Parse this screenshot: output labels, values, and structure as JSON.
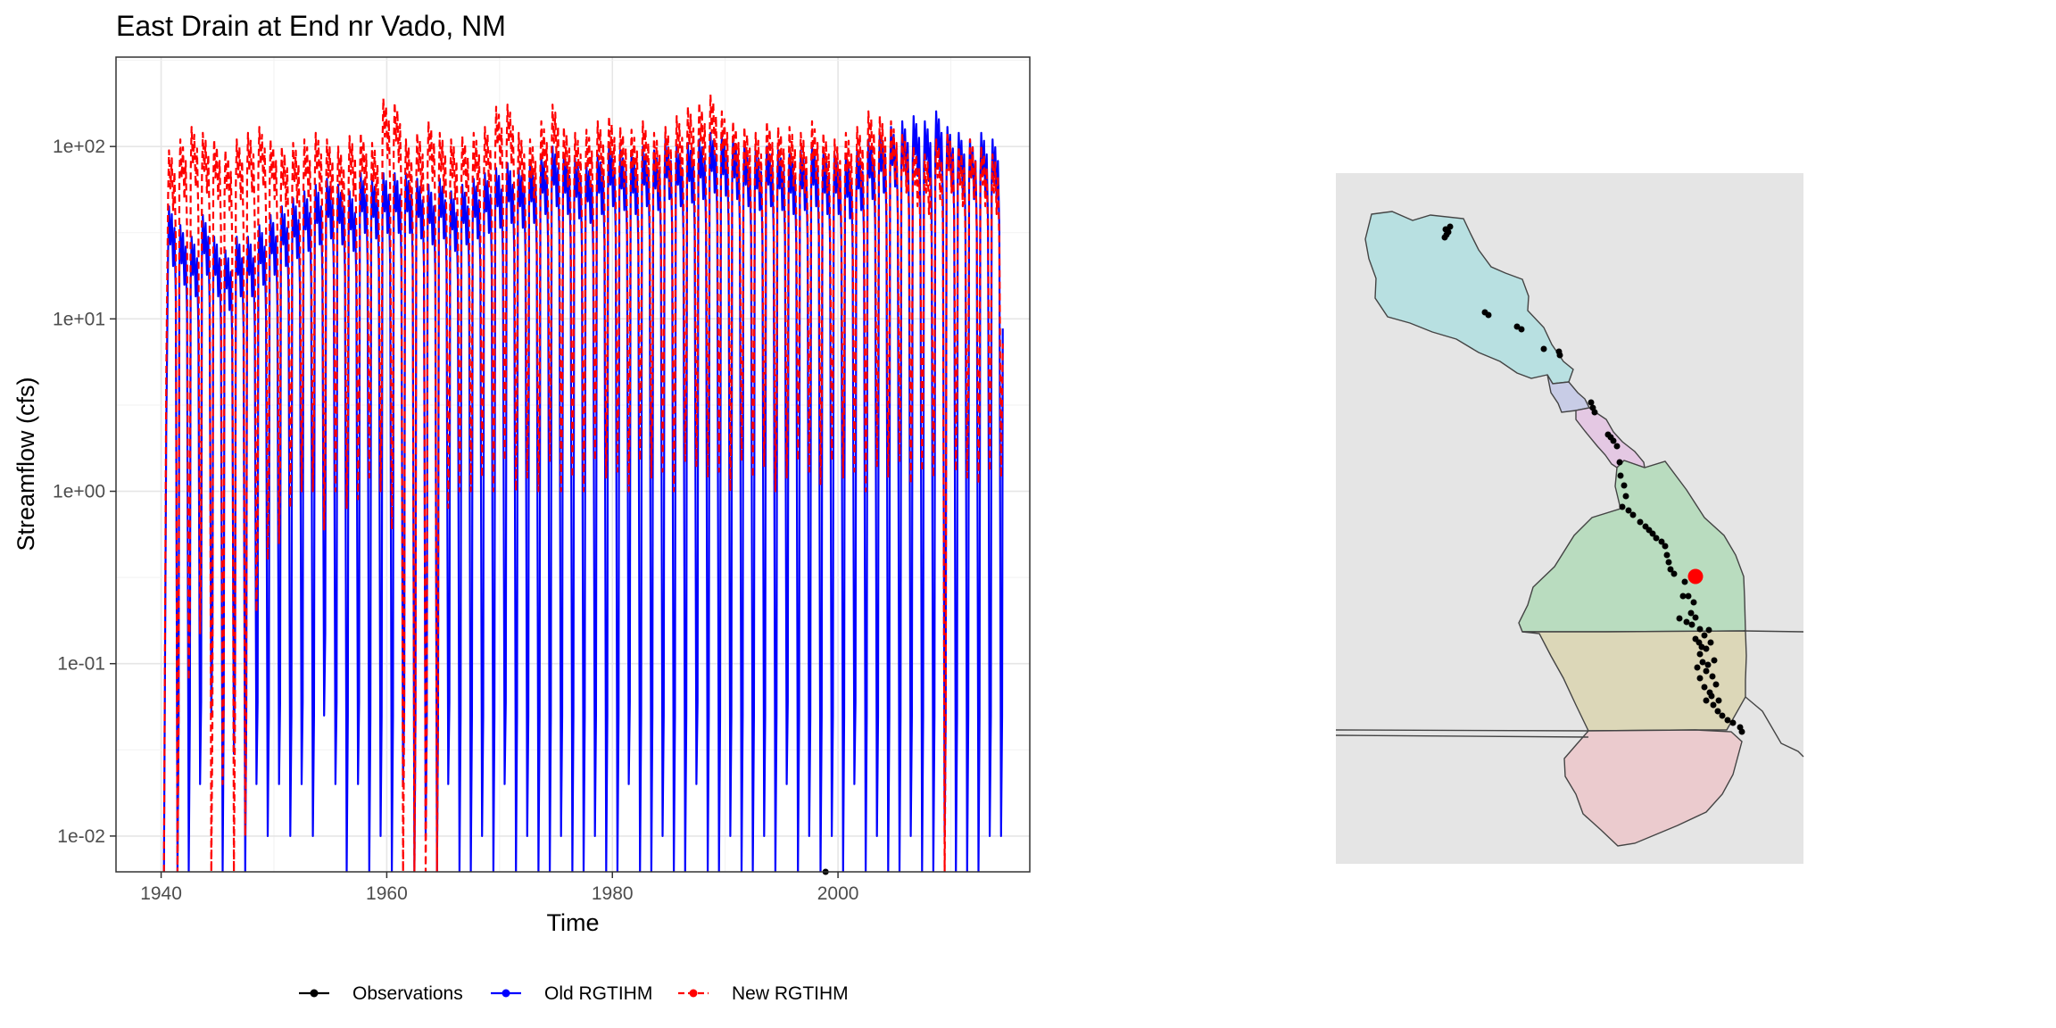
{
  "chart_data": [
    {
      "type": "line",
      "title": "East Drain at End nr Vado, NM",
      "xlabel": "Time",
      "ylabel": "Streamflow (cfs)",
      "xlim": [
        1936,
        2017
      ],
      "x_ticks": [
        1940,
        1960,
        1980,
        2000
      ],
      "y_scale": "log10",
      "ylim": [
        0.0062,
        330
      ],
      "y_ticks": [
        {
          "value": 0.01,
          "label": "1e-02"
        },
        {
          "value": 0.1,
          "label": "1e-01"
        },
        {
          "value": 1,
          "label": "1e+00"
        },
        {
          "value": 10,
          "label": "1e+01"
        },
        {
          "value": 100,
          "label": "1e+02"
        }
      ],
      "grid": true,
      "legend_position": "bottom",
      "series": [
        {
          "name": "Observations",
          "color": "#000000",
          "style": "solid",
          "x": [
            1998.9
          ],
          "y": [
            0.0062
          ]
        },
        {
          "name": "Old RGTIHM",
          "color": "#0000ff",
          "style": "solid",
          "peak_years": [
            1941,
            1942,
            1943,
            1944,
            1945,
            1946,
            1947,
            1948,
            1949,
            1950,
            1951,
            1952,
            1953,
            1954,
            1955,
            1956,
            1957,
            1958,
            1959,
            1960,
            1961,
            1962,
            1963,
            1964,
            1965,
            1966,
            1967,
            1968,
            1969,
            1970,
            1971,
            1972,
            1973,
            1974,
            1975,
            1976,
            1977,
            1978,
            1979,
            1980,
            1981,
            1982,
            1983,
            1984,
            1985,
            1986,
            1987,
            1988,
            1989,
            1990,
            1991,
            1992,
            1993,
            1994,
            1995,
            1996,
            1997,
            1998,
            1999,
            2000,
            2001,
            2002,
            2003,
            2004,
            2005,
            2006,
            2007,
            2008,
            2009,
            2010,
            2011,
            2012,
            2013,
            2014
          ],
          "annual_peak": [
            45,
            35,
            30,
            40,
            30,
            25,
            30,
            30,
            35,
            40,
            45,
            50,
            55,
            60,
            65,
            60,
            55,
            70,
            65,
            70,
            70,
            70,
            65,
            60,
            65,
            55,
            60,
            65,
            70,
            75,
            80,
            75,
            80,
            90,
            100,
            90,
            85,
            80,
            90,
            100,
            95,
            90,
            100,
            95,
            110,
            100,
            105,
            110,
            120,
            115,
            110,
            100,
            95,
            100,
            95,
            90,
            95,
            100,
            90,
            90,
            85,
            95,
            110,
            120,
            130,
            140,
            150,
            140,
            160,
            130,
            120,
            110,
            120,
            110
          ],
          "annual_min": [
            0.0062,
            0.0062,
            0.02,
            0.05,
            0.0062,
            0.03,
            0.0062,
            0.02,
            0.01,
            0.02,
            0.01,
            0.02,
            0.01,
            0.05,
            0.02,
            0.0062,
            0.02,
            0.0062,
            0.01,
            0.0062,
            0.02,
            0.0062,
            0.01,
            0.0062,
            0.02,
            0.0062,
            0.0062,
            0.01,
            0.0062,
            0.02,
            0.0062,
            0.01,
            0.0062,
            0.0062,
            0.01,
            0.0062,
            0.0062,
            0.01,
            0.0062,
            0.0062,
            0.02,
            0.0062,
            0.0062,
            0.01,
            0.0062,
            0.0062,
            0.02,
            0.0062,
            0.0062,
            0.01,
            0.0062,
            0.0062,
            0.01,
            0.0062,
            0.02,
            0.0062,
            0.01,
            0.0062,
            0.01,
            0.0062,
            0.02,
            0.0062,
            0.01,
            0.0062,
            0.0062,
            0.01,
            0.0062,
            0.0062,
            0.01,
            0.0062,
            0.0062,
            0.0062,
            0.01,
            0.01
          ]
        },
        {
          "name": "New RGTIHM",
          "color": "#ff0000",
          "style": "dashed",
          "peak_years": [
            1941,
            1942,
            1943,
            1944,
            1945,
            1946,
            1947,
            1948,
            1949,
            1950,
            1951,
            1952,
            1953,
            1954,
            1955,
            1956,
            1957,
            1958,
            1959,
            1960,
            1961,
            1962,
            1963,
            1964,
            1965,
            1966,
            1967,
            1968,
            1969,
            1970,
            1971,
            1972,
            1973,
            1974,
            1975,
            1976,
            1977,
            1978,
            1979,
            1980,
            1981,
            1982,
            1983,
            1984,
            1985,
            1986,
            1987,
            1988,
            1989,
            1990,
            1991,
            1992,
            1993,
            1994,
            1995,
            1996,
            1997,
            1998,
            1999,
            2000,
            2001,
            2002,
            2003,
            2004,
            2005,
            2006,
            2007,
            2008,
            2009,
            2010,
            2011,
            2012,
            2013,
            2014
          ],
          "annual_peak": [
            95,
            110,
            130,
            120,
            110,
            95,
            110,
            120,
            130,
            110,
            100,
            105,
            110,
            120,
            110,
            100,
            115,
            120,
            105,
            190,
            180,
            110,
            120,
            140,
            120,
            110,
            115,
            120,
            130,
            170,
            175,
            120,
            110,
            140,
            175,
            130,
            120,
            125,
            140,
            150,
            130,
            125,
            140,
            120,
            130,
            150,
            170,
            180,
            200,
            160,
            140,
            130,
            120,
            140,
            130,
            130,
            120,
            140,
            120,
            110,
            120,
            130,
            160,
            150,
            140,
            120,
            100,
            90,
            110,
            120,
            100,
            110,
            100,
            90
          ],
          "annual_min": [
            0.0062,
            0.08,
            0.15,
            0.0062,
            0.02,
            0.0062,
            0.01,
            0.2,
            0.4,
            0.5,
            0.8,
            1,
            1,
            0.6,
            1,
            0.8,
            0.9,
            1.2,
            1,
            0.6,
            0.0062,
            0.0062,
            0.0062,
            0.0062,
            0.8,
            1,
            1,
            1.2,
            1,
            1.5,
            1,
            1.2,
            1,
            1.5,
            1,
            1.2,
            1,
            1.5,
            1.2,
            1.3,
            1,
            1.5,
            1.2,
            1.3,
            1,
            1.5,
            1.4,
            1.2,
            1.3,
            1,
            1.5,
            1.2,
            1.4,
            1,
            1.2,
            1.5,
            1.3,
            1.1,
            1.5,
            1.2,
            1.3,
            1,
            1.4,
            1.2,
            1.5,
            1.1,
            1.3,
            1.2,
            0.0062,
            1.3,
            1.2,
            1.1,
            1.3,
            1.2
          ]
        }
      ]
    },
    {
      "type": "map",
      "background": "#e5e5e5",
      "border_color": "#444444",
      "regions": [
        {
          "fill": "#b8e0e1"
        },
        {
          "fill": "#c8cce6"
        },
        {
          "fill": "#e4c8e3"
        },
        {
          "fill": "#b9dcbf"
        },
        {
          "fill": "#dcd7b8"
        },
        {
          "fill": "#ebcbce"
        }
      ],
      "well_points": {
        "color": "#000000"
      },
      "highlighted_site": {
        "color": "#ff0000"
      }
    }
  ]
}
